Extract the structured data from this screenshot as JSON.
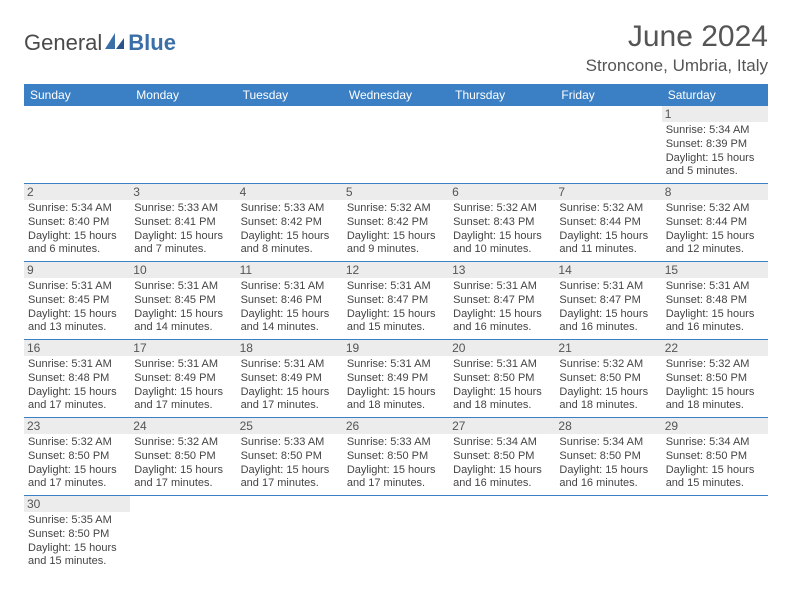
{
  "logo": {
    "part1": "General",
    "part2": "Blue"
  },
  "title": "June 2024",
  "location": "Stroncone, Umbria, Italy",
  "colors": {
    "header_bg": "#3b7fc4",
    "header_text": "#ffffff",
    "border": "#3b7fc4",
    "daynum_bg": "#ececec",
    "empty_bg": "#f0f0f0",
    "logo_accent": "#3b6fa8"
  },
  "weekdays": [
    "Sunday",
    "Monday",
    "Tuesday",
    "Wednesday",
    "Thursday",
    "Friday",
    "Saturday"
  ],
  "weeks": [
    [
      null,
      null,
      null,
      null,
      null,
      null,
      {
        "n": "1",
        "sr": "Sunrise: 5:34 AM",
        "ss": "Sunset: 8:39 PM",
        "d1": "Daylight: 15 hours",
        "d2": "and 5 minutes."
      }
    ],
    [
      {
        "n": "2",
        "sr": "Sunrise: 5:34 AM",
        "ss": "Sunset: 8:40 PM",
        "d1": "Daylight: 15 hours",
        "d2": "and 6 minutes."
      },
      {
        "n": "3",
        "sr": "Sunrise: 5:33 AM",
        "ss": "Sunset: 8:41 PM",
        "d1": "Daylight: 15 hours",
        "d2": "and 7 minutes."
      },
      {
        "n": "4",
        "sr": "Sunrise: 5:33 AM",
        "ss": "Sunset: 8:42 PM",
        "d1": "Daylight: 15 hours",
        "d2": "and 8 minutes."
      },
      {
        "n": "5",
        "sr": "Sunrise: 5:32 AM",
        "ss": "Sunset: 8:42 PM",
        "d1": "Daylight: 15 hours",
        "d2": "and 9 minutes."
      },
      {
        "n": "6",
        "sr": "Sunrise: 5:32 AM",
        "ss": "Sunset: 8:43 PM",
        "d1": "Daylight: 15 hours",
        "d2": "and 10 minutes."
      },
      {
        "n": "7",
        "sr": "Sunrise: 5:32 AM",
        "ss": "Sunset: 8:44 PM",
        "d1": "Daylight: 15 hours",
        "d2": "and 11 minutes."
      },
      {
        "n": "8",
        "sr": "Sunrise: 5:32 AM",
        "ss": "Sunset: 8:44 PM",
        "d1": "Daylight: 15 hours",
        "d2": "and 12 minutes."
      }
    ],
    [
      {
        "n": "9",
        "sr": "Sunrise: 5:31 AM",
        "ss": "Sunset: 8:45 PM",
        "d1": "Daylight: 15 hours",
        "d2": "and 13 minutes."
      },
      {
        "n": "10",
        "sr": "Sunrise: 5:31 AM",
        "ss": "Sunset: 8:45 PM",
        "d1": "Daylight: 15 hours",
        "d2": "and 14 minutes."
      },
      {
        "n": "11",
        "sr": "Sunrise: 5:31 AM",
        "ss": "Sunset: 8:46 PM",
        "d1": "Daylight: 15 hours",
        "d2": "and 14 minutes."
      },
      {
        "n": "12",
        "sr": "Sunrise: 5:31 AM",
        "ss": "Sunset: 8:47 PM",
        "d1": "Daylight: 15 hours",
        "d2": "and 15 minutes."
      },
      {
        "n": "13",
        "sr": "Sunrise: 5:31 AM",
        "ss": "Sunset: 8:47 PM",
        "d1": "Daylight: 15 hours",
        "d2": "and 16 minutes."
      },
      {
        "n": "14",
        "sr": "Sunrise: 5:31 AM",
        "ss": "Sunset: 8:47 PM",
        "d1": "Daylight: 15 hours",
        "d2": "and 16 minutes."
      },
      {
        "n": "15",
        "sr": "Sunrise: 5:31 AM",
        "ss": "Sunset: 8:48 PM",
        "d1": "Daylight: 15 hours",
        "d2": "and 16 minutes."
      }
    ],
    [
      {
        "n": "16",
        "sr": "Sunrise: 5:31 AM",
        "ss": "Sunset: 8:48 PM",
        "d1": "Daylight: 15 hours",
        "d2": "and 17 minutes."
      },
      {
        "n": "17",
        "sr": "Sunrise: 5:31 AM",
        "ss": "Sunset: 8:49 PM",
        "d1": "Daylight: 15 hours",
        "d2": "and 17 minutes."
      },
      {
        "n": "18",
        "sr": "Sunrise: 5:31 AM",
        "ss": "Sunset: 8:49 PM",
        "d1": "Daylight: 15 hours",
        "d2": "and 17 minutes."
      },
      {
        "n": "19",
        "sr": "Sunrise: 5:31 AM",
        "ss": "Sunset: 8:49 PM",
        "d1": "Daylight: 15 hours",
        "d2": "and 18 minutes."
      },
      {
        "n": "20",
        "sr": "Sunrise: 5:31 AM",
        "ss": "Sunset: 8:50 PM",
        "d1": "Daylight: 15 hours",
        "d2": "and 18 minutes."
      },
      {
        "n": "21",
        "sr": "Sunrise: 5:32 AM",
        "ss": "Sunset: 8:50 PM",
        "d1": "Daylight: 15 hours",
        "d2": "and 18 minutes."
      },
      {
        "n": "22",
        "sr": "Sunrise: 5:32 AM",
        "ss": "Sunset: 8:50 PM",
        "d1": "Daylight: 15 hours",
        "d2": "and 18 minutes."
      }
    ],
    [
      {
        "n": "23",
        "sr": "Sunrise: 5:32 AM",
        "ss": "Sunset: 8:50 PM",
        "d1": "Daylight: 15 hours",
        "d2": "and 17 minutes."
      },
      {
        "n": "24",
        "sr": "Sunrise: 5:32 AM",
        "ss": "Sunset: 8:50 PM",
        "d1": "Daylight: 15 hours",
        "d2": "and 17 minutes."
      },
      {
        "n": "25",
        "sr": "Sunrise: 5:33 AM",
        "ss": "Sunset: 8:50 PM",
        "d1": "Daylight: 15 hours",
        "d2": "and 17 minutes."
      },
      {
        "n": "26",
        "sr": "Sunrise: 5:33 AM",
        "ss": "Sunset: 8:50 PM",
        "d1": "Daylight: 15 hours",
        "d2": "and 17 minutes."
      },
      {
        "n": "27",
        "sr": "Sunrise: 5:34 AM",
        "ss": "Sunset: 8:50 PM",
        "d1": "Daylight: 15 hours",
        "d2": "and 16 minutes."
      },
      {
        "n": "28",
        "sr": "Sunrise: 5:34 AM",
        "ss": "Sunset: 8:50 PM",
        "d1": "Daylight: 15 hours",
        "d2": "and 16 minutes."
      },
      {
        "n": "29",
        "sr": "Sunrise: 5:34 AM",
        "ss": "Sunset: 8:50 PM",
        "d1": "Daylight: 15 hours",
        "d2": "and 15 minutes."
      }
    ],
    [
      {
        "n": "30",
        "sr": "Sunrise: 5:35 AM",
        "ss": "Sunset: 8:50 PM",
        "d1": "Daylight: 15 hours",
        "d2": "and 15 minutes."
      },
      null,
      null,
      null,
      null,
      null,
      null
    ]
  ]
}
